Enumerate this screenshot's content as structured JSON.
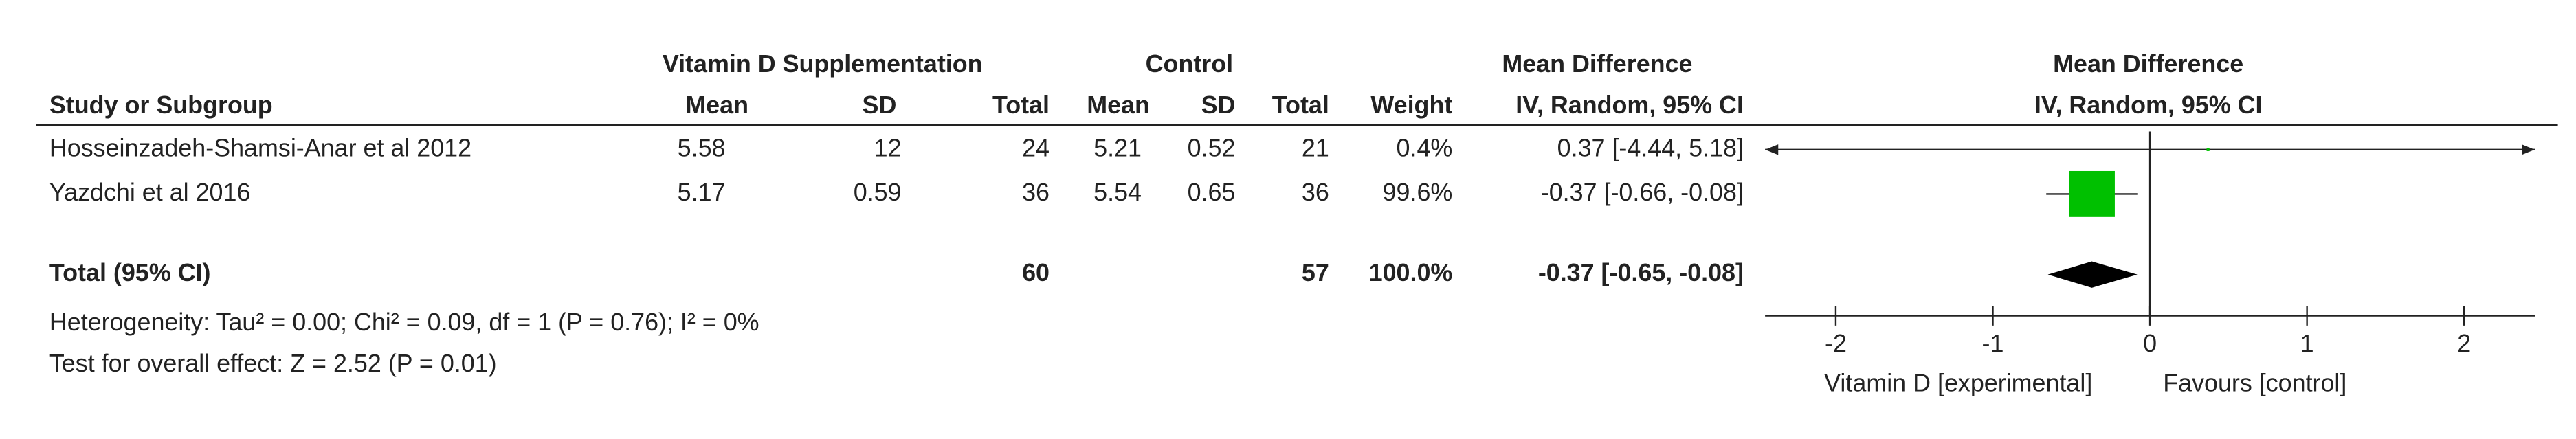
{
  "chart_data": {
    "type": "forest",
    "group_headers": [
      "Vitamin D Supplementation",
      "Control",
      "Mean Difference",
      "Mean Difference"
    ],
    "column_headers": [
      "Study or Subgroup",
      "Mean",
      "SD",
      "Total",
      "Mean",
      "SD",
      "Total",
      "Weight",
      "IV, Random, 95% CI",
      "IV, Random, 95% CI"
    ],
    "studies": [
      {
        "name": "Hosseinzadeh-Shamsi-Anar et al 2012",
        "exp_mean": 5.58,
        "exp_sd": 12,
        "exp_total": 24,
        "ctrl_mean": 5.21,
        "ctrl_sd": 0.52,
        "ctrl_total": 21,
        "weight": {
          "value": 0.4,
          "label": "0.4%"
        },
        "md": 0.37,
        "ci_low": -4.44,
        "ci_high": 5.18,
        "estimate_label": "0.37 [-4.44, 5.18]"
      },
      {
        "name": "Yazdchi et al 2016",
        "exp_mean": 5.17,
        "exp_sd": 0.59,
        "exp_total": 36,
        "ctrl_mean": 5.54,
        "ctrl_sd": 0.65,
        "ctrl_total": 36,
        "weight": {
          "value": 99.6,
          "label": "99.6%"
        },
        "md": -0.37,
        "ci_low": -0.66,
        "ci_high": -0.08,
        "estimate_label": "-0.37 [-0.66, -0.08]"
      }
    ],
    "total": {
      "name": "Total (95% CI)",
      "exp_total": 60,
      "ctrl_total": 57,
      "weight": {
        "value": 100,
        "label": "100.0%"
      },
      "md": -0.37,
      "ci_low": -0.65,
      "ci_high": -0.08,
      "estimate_label": "-0.37 [-0.65, -0.08]"
    },
    "heterogeneity": "Heterogeneity: Tau² = 0.00; Chi² = 0.09, df = 1 (P = 0.76); I² = 0%",
    "overall_effect": "Test for overall effect: Z = 2.52 (P = 0.01)",
    "xlim": [
      -2.45,
      2.45
    ],
    "xticks": [
      -2,
      -1,
      0,
      1,
      2
    ],
    "x_label_left": "Vitamin D [experimental]",
    "x_label_right": "Favours [control]",
    "square_color": "#00c000",
    "diamond_color": "#000000"
  }
}
